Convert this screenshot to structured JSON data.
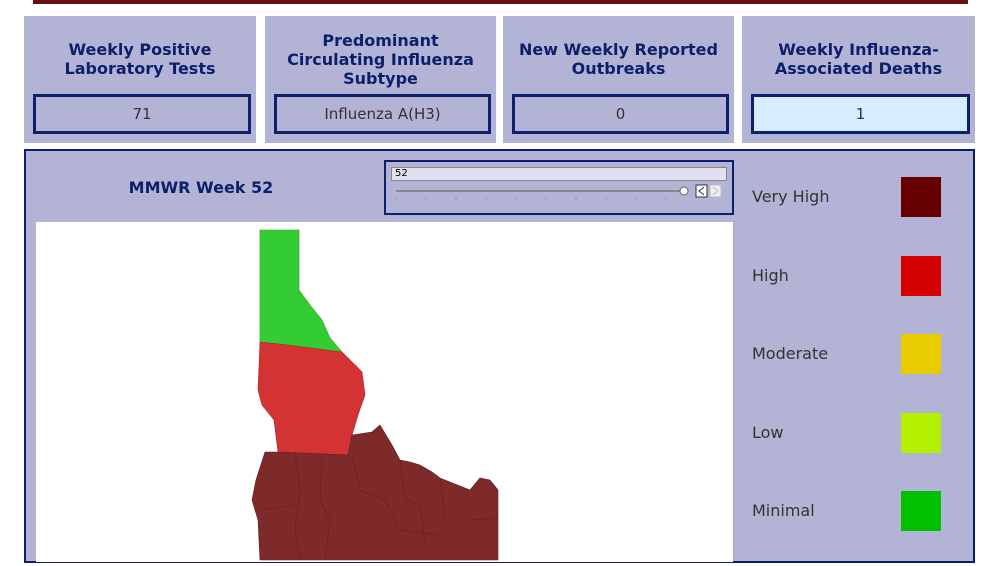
{
  "cards": [
    {
      "title": "Weekly Positive Laboratory Tests",
      "value": "71"
    },
    {
      "title": "Predominant Circulating Influenza Subtype",
      "value": "Influenza A(H3)"
    },
    {
      "title": "New Weekly Reported Outbreaks",
      "value": "0"
    },
    {
      "title": "Weekly Influenza-Associated Deaths",
      "value": "1"
    }
  ],
  "week_label": "MMWR Week 52",
  "slider_value": "52",
  "legend": [
    {
      "label": "Very High",
      "color": "#660000"
    },
    {
      "label": "High",
      "color": "#d40000"
    },
    {
      "label": "Moderate",
      "color": "#e8cc00"
    },
    {
      "label": "Low",
      "color": "#b4ee00"
    },
    {
      "label": "Minimal",
      "color": "#00c000"
    }
  ]
}
